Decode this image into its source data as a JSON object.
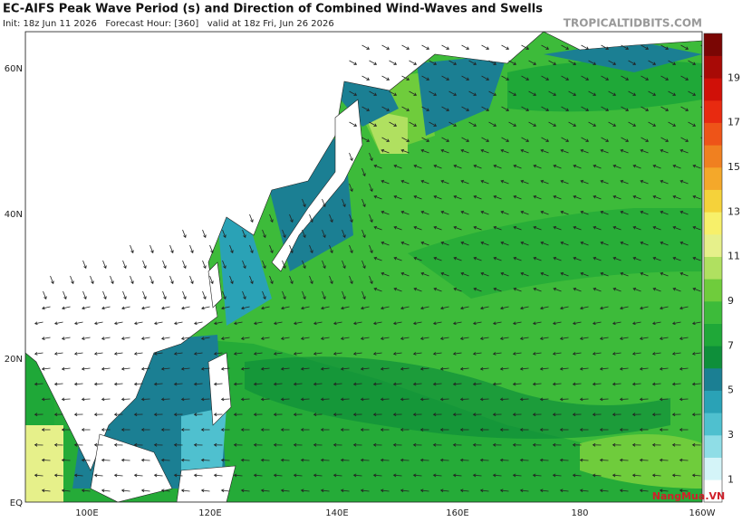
{
  "header": {
    "title": "EC-AIFS Peak Wave Period (s) and Direction of Combined Wind-Waves and Swells",
    "subtitle": "Init: 18z Jun 11 2026   Forecast Hour: [360]   valid at 18z Fri, Jun 26 2026",
    "site": "TROPICALTIDBITS.COM"
  },
  "map": {
    "lat_labels": [
      "60N",
      "40N",
      "20N",
      "EQ"
    ],
    "lon_labels": [
      "100E",
      "120E",
      "140E",
      "160E",
      "180",
      "160W"
    ]
  },
  "colorbar": {
    "labels": [
      "19",
      "17",
      "15",
      "13",
      "11",
      "9",
      "7",
      "5",
      "3",
      "1"
    ],
    "colors": [
      "#ffffff",
      "#d4f4f8",
      "#8fdde6",
      "#4fc0cf",
      "#2aa2b6",
      "#1b7f93",
      "#0e8f3a",
      "#1fa838",
      "#3dbb3a",
      "#6fcc3c",
      "#b0e060",
      "#e6f08a",
      "#f7f06a",
      "#f5d23a",
      "#f4a82a",
      "#f08020",
      "#ee5418",
      "#e82a10",
      "#d01008",
      "#a80a06",
      "#7a0604"
    ]
  },
  "watermark": "NangMua.VN"
}
